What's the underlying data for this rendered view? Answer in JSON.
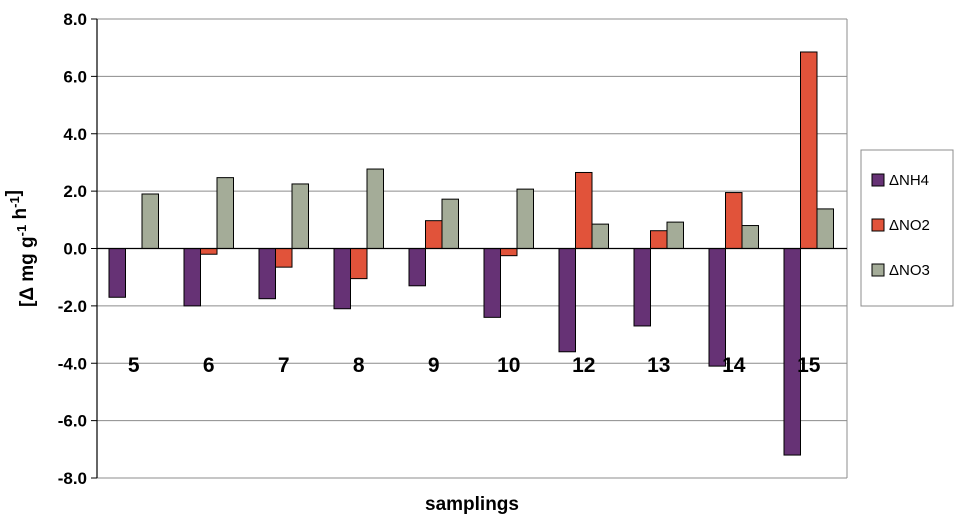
{
  "chart_data": {
    "type": "bar",
    "title": "",
    "xlabel": "samplings",
    "ylabel_parts": [
      "[",
      "Δ",
      " mg g",
      "-1",
      " h",
      "-1",
      "]"
    ],
    "ylim": [
      -8.0,
      8.0
    ],
    "yticks": [
      8.0,
      6.0,
      4.0,
      2.0,
      0.0,
      -2.0,
      -4.0,
      -6.0,
      -8.0
    ],
    "ytick_labels": [
      "8.0",
      "6.0",
      "4.0",
      "2.0",
      "0.0",
      "-2.0",
      "-4.0",
      "-6.0",
      "-8.0"
    ],
    "grid": true,
    "legend_position": "right",
    "categories": [
      "5",
      "6",
      "7",
      "8",
      "9",
      "10",
      "12",
      "13",
      "14",
      "15"
    ],
    "series": [
      {
        "name": "ΔNH4",
        "color": "#663275",
        "values": [
          -1.7,
          -2.0,
          -1.75,
          -2.1,
          -1.3,
          -2.4,
          -3.6,
          -2.7,
          -4.1,
          -7.2
        ]
      },
      {
        "name": "ΔNO2",
        "color": "#e1533a",
        "values": [
          0.0,
          -0.2,
          -0.65,
          -1.05,
          0.97,
          -0.25,
          2.65,
          0.62,
          1.95,
          6.85
        ]
      },
      {
        "name": "ΔNO3",
        "color": "#a4ac98",
        "values": [
          1.9,
          2.47,
          2.25,
          2.77,
          1.72,
          2.07,
          0.85,
          0.92,
          0.8,
          1.38
        ]
      }
    ]
  }
}
